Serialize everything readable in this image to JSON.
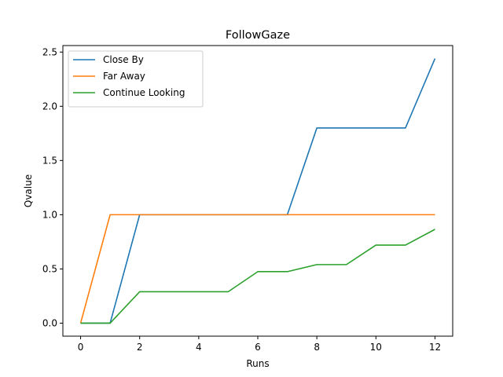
{
  "chart_data": {
    "type": "line",
    "title": "FollowGaze",
    "xlabel": "Runs",
    "ylabel": "Qvalue",
    "xlim": [
      -0.6,
      12.6
    ],
    "ylim": [
      -0.12,
      2.56
    ],
    "x_ticks": [
      0,
      2,
      4,
      6,
      8,
      10,
      12
    ],
    "y_ticks": [
      0.0,
      0.5,
      1.0,
      1.5,
      2.0,
      2.5
    ],
    "x_tick_labels": [
      "0",
      "2",
      "4",
      "6",
      "8",
      "10",
      "12"
    ],
    "y_tick_labels": [
      "0.0",
      "0.5",
      "1.0",
      "1.5",
      "2.0",
      "2.5"
    ],
    "grid": false,
    "legend_position": "top-left",
    "x": [
      0,
      1,
      2,
      3,
      4,
      5,
      6,
      7,
      8,
      9,
      10,
      11,
      12
    ],
    "series": [
      {
        "name": "Close By",
        "color": "#1f77b4",
        "values": [
          0.0,
          0.0,
          1.0,
          1.0,
          1.0,
          1.0,
          1.0,
          1.0,
          1.8,
          1.8,
          1.8,
          1.8,
          2.44
        ]
      },
      {
        "name": "Far Away",
        "color": "#ff7f0e",
        "values": [
          0.0,
          1.0,
          1.0,
          1.0,
          1.0,
          1.0,
          1.0,
          1.0,
          1.0,
          1.0,
          1.0,
          1.0,
          1.0
        ]
      },
      {
        "name": "Continue Looking",
        "color": "#2ca02c",
        "values": [
          0.0,
          0.0,
          0.29,
          0.29,
          0.29,
          0.29,
          0.475,
          0.475,
          0.54,
          0.54,
          0.72,
          0.72,
          0.865
        ]
      }
    ]
  }
}
